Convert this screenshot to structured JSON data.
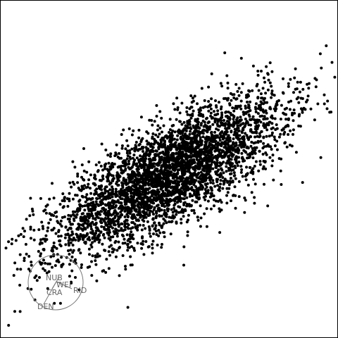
{
  "chart_data": {
    "type": "scatter",
    "title": "",
    "xlabel": "",
    "ylabel": "",
    "grid": false,
    "point_color": "#000000",
    "axis_guide_color": "#777777",
    "cloud": {
      "n_points": 4000,
      "center": [
        0.0,
        0.0
      ],
      "std_major": 1.0,
      "std_minor": 0.33,
      "major_axis_angle_deg": 31
    },
    "axis_guide": {
      "labels": [
        "NUB",
        "WEI",
        "CRA",
        "RID",
        "DEN"
      ]
    }
  }
}
